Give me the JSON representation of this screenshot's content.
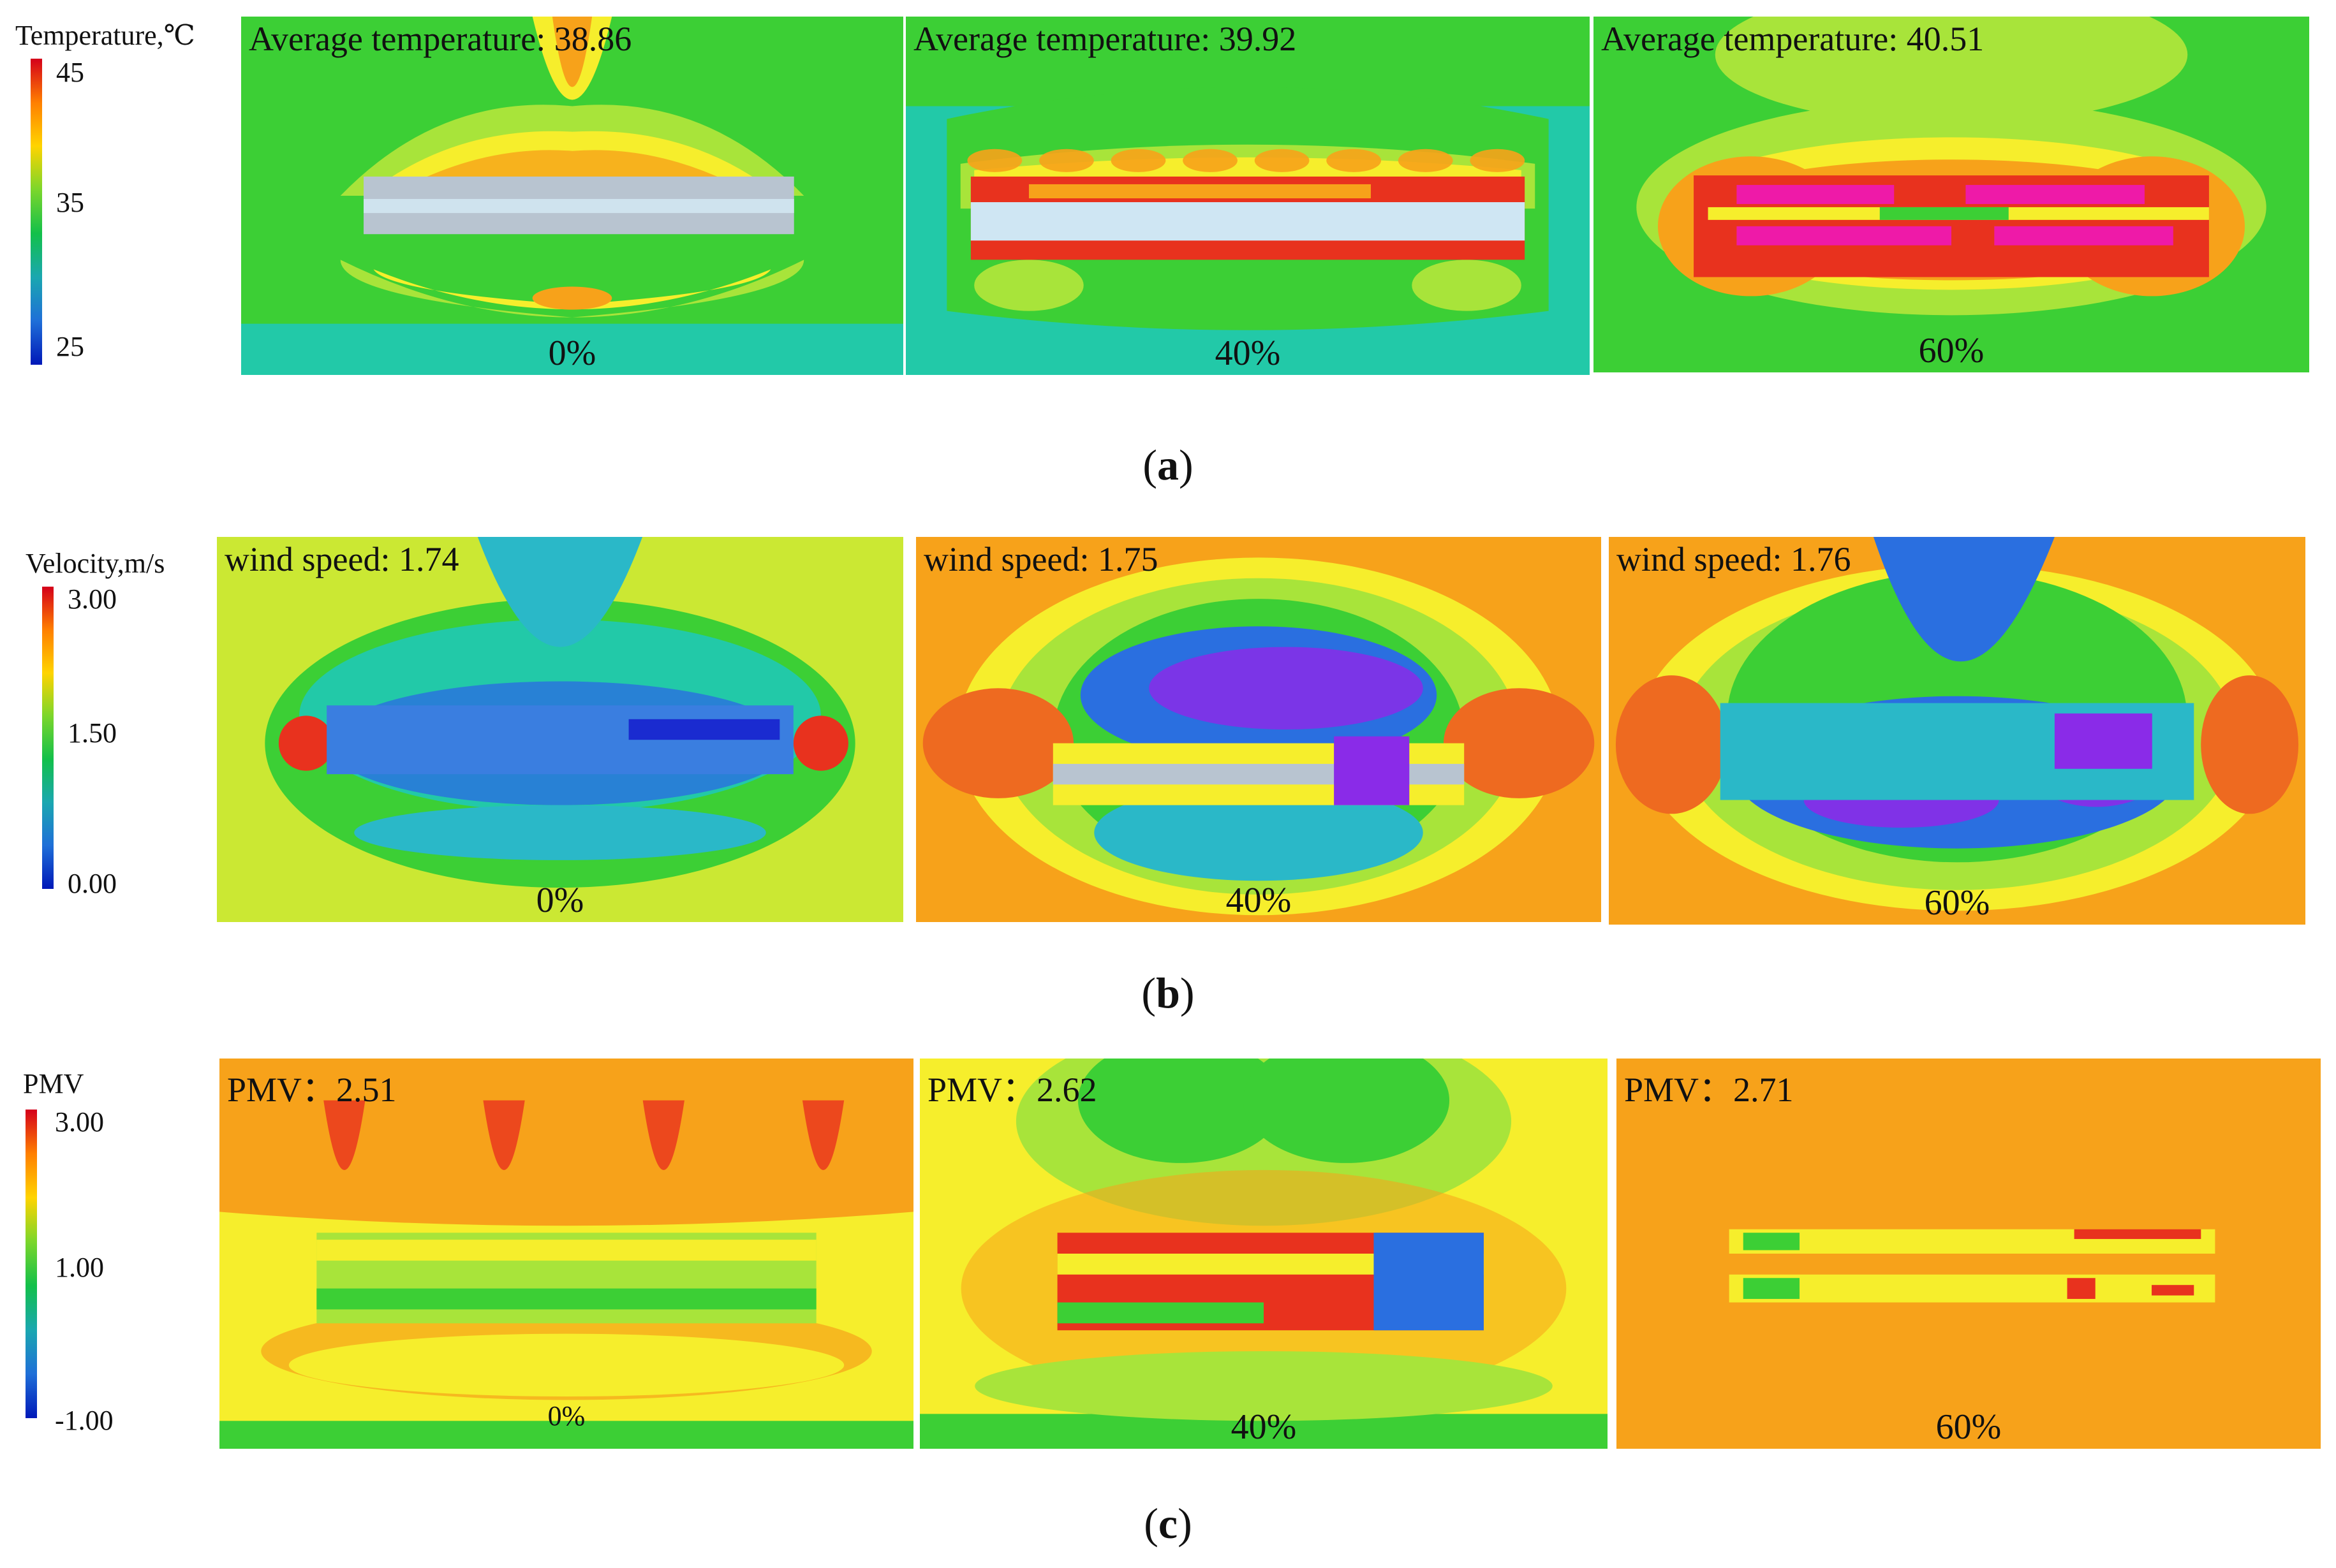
{
  "rows": [
    {
      "id": "a",
      "caption_letter": "a",
      "legend": {
        "title": "Temperature,℃",
        "ticks": [
          "45",
          "35",
          "25"
        ],
        "colors": [
          "#d4001a",
          "#ff7f00",
          "#ffd400",
          "#7bd62b",
          "#12c04a",
          "#1aa7b0",
          "#1f6fd8",
          "#0018b8"
        ]
      },
      "panels": [
        {
          "label": "Average temperature: 38.86",
          "pct": "0%",
          "variant": "temp0"
        },
        {
          "label": "Average temperature: 39.92",
          "pct": "40%",
          "variant": "temp40"
        },
        {
          "label": "Average temperature: 40.51",
          "pct": "60%",
          "variant": "temp60"
        }
      ]
    },
    {
      "id": "b",
      "caption_letter": "b",
      "legend": {
        "title": "Velocity,m/s",
        "ticks": [
          "3.00",
          "1.50",
          "0.00"
        ],
        "colors": [
          "#d4001a",
          "#ff7f00",
          "#ffd400",
          "#7bd62b",
          "#12c04a",
          "#1aa7b0",
          "#1f6fd8",
          "#0018b8"
        ]
      },
      "panels": [
        {
          "label": "wind speed: 1.74",
          "pct": "0%",
          "variant": "vel0"
        },
        {
          "label": "wind speed: 1.75",
          "pct": "40%",
          "variant": "vel40"
        },
        {
          "label": "wind speed: 1.76",
          "pct": "60%",
          "variant": "vel60"
        }
      ]
    },
    {
      "id": "c",
      "caption_letter": "c",
      "legend": {
        "title": "PMV",
        "ticks": [
          "3.00",
          "1.00",
          "-1.00"
        ],
        "colors": [
          "#d4001a",
          "#ff7f00",
          "#ffd400",
          "#7bd62b",
          "#12c04a",
          "#1aa7b0",
          "#1f6fd8",
          "#0018b8"
        ]
      },
      "panels": [
        {
          "label": "PMV：2.51",
          "pct": "0%",
          "variant": "pmv0"
        },
        {
          "label": "PMV：2.62",
          "pct": "40%",
          "variant": "pmv40"
        },
        {
          "label": "PMV：2.71",
          "pct": "60%",
          "variant": "pmv60"
        }
      ]
    }
  ],
  "palette": {
    "red": "#e8321e",
    "orange": "#f7a21a",
    "yellow": "#f6ee2c",
    "lightgreen": "#a8e43a",
    "green": "#3ccf35",
    "cyan": "#22c9a8",
    "teal": "#2ab8c8",
    "blue": "#2a6fe0",
    "darkblue": "#1a2bd0",
    "purple": "#8a2be8",
    "magenta": "#ee1aa8",
    "grey": "#b8c4d0"
  }
}
